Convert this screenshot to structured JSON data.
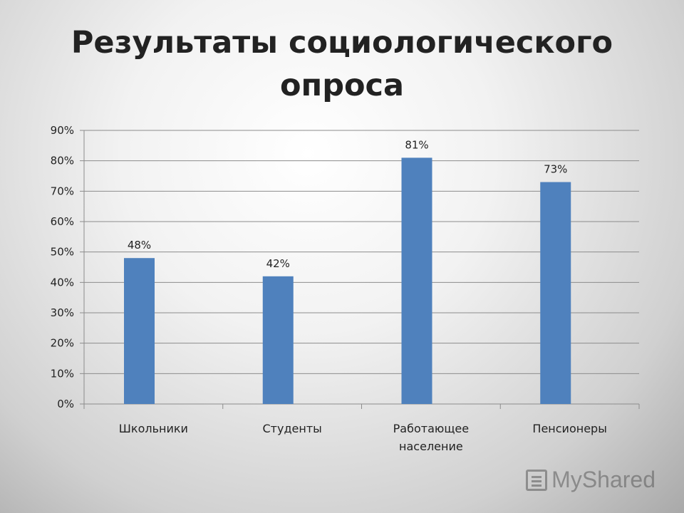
{
  "title": "Результаты социологического опроса",
  "watermark": "MyShared",
  "colors": {
    "bar": "#4f81bd",
    "grid": "#8c8c8c",
    "axis": "#8c8c8c"
  },
  "chart_data": {
    "type": "bar",
    "title": "",
    "xlabel": "",
    "ylabel": "",
    "categories": [
      [
        "Школьники"
      ],
      [
        "Студенты"
      ],
      [
        "Работающее",
        "население"
      ],
      [
        "Пенсионеры"
      ]
    ],
    "values": [
      48,
      42,
      81,
      73
    ],
    "data_labels": [
      "48%",
      "42%",
      "81%",
      "73%"
    ],
    "y_ticks": [
      "0%",
      "10%",
      "20%",
      "30%",
      "40%",
      "50%",
      "60%",
      "70%",
      "80%",
      "90%"
    ],
    "ylim": [
      0,
      90
    ],
    "grid": true,
    "legend": "none"
  }
}
